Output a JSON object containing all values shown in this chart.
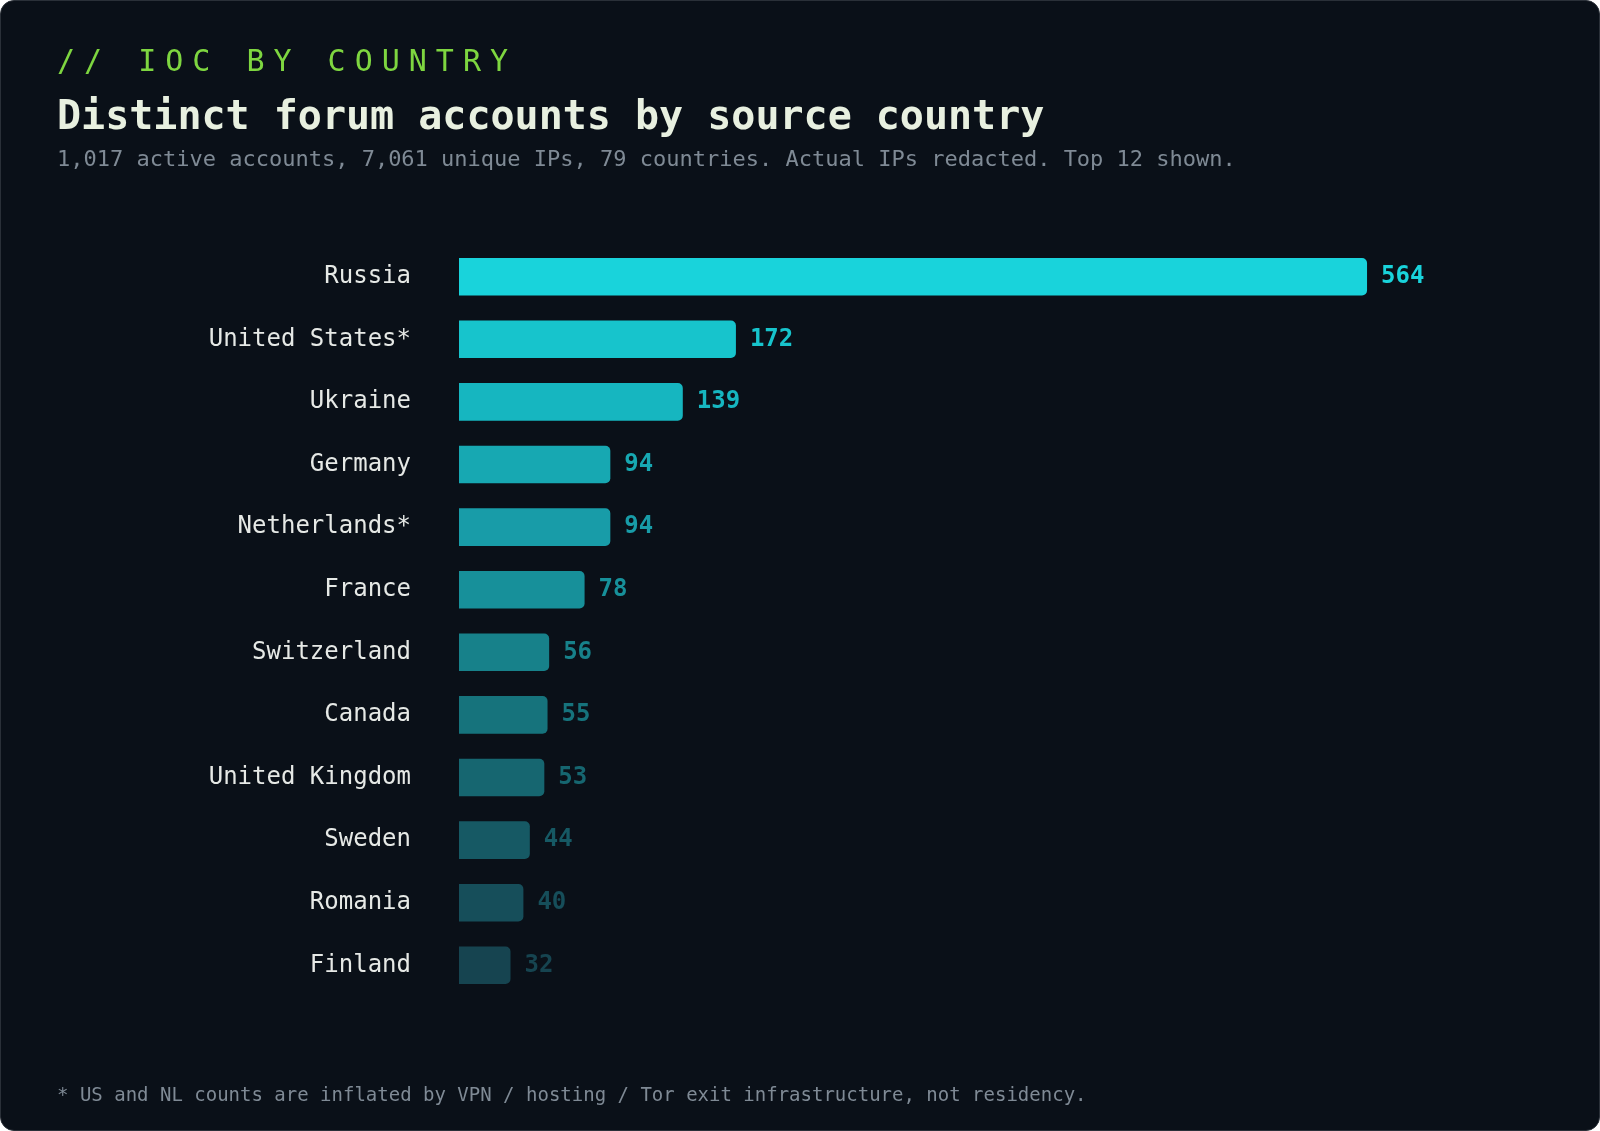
{
  "chart_data": {
    "type": "bar",
    "orientation": "horizontal",
    "title": "Distinct forum accounts by source country",
    "subtitle": "1,017 active accounts, 7,061 unique IPs, 79 countries. Actual IPs redacted. Top 12 shown.",
    "annotations": [
      "// IOC BY COUNTRY",
      "* US and NL counts are inflated by VPN / hosting / Tor exit infrastructure, not residency."
    ],
    "categories": [
      "Russia",
      "United States*",
      "Ukraine",
      "Germany",
      "Netherlands*",
      "France",
      "Switzerland",
      "Canada",
      "United Kingdom",
      "Sweden",
      "Romania",
      "Finland"
    ],
    "values": [
      564,
      172,
      139,
      94,
      94,
      78,
      56,
      55,
      53,
      44,
      40,
      32
    ],
    "colors": [
      "#19d3db",
      "#17c4cc",
      "#16b6c0",
      "#17a8b2",
      "#189ca8",
      "#17909a",
      "#17818a",
      "#16737c",
      "#166670",
      "#165964",
      "#164e5a",
      "#164450"
    ],
    "data_labels": true,
    "legend": false,
    "tick_labels": "y"
  }
}
